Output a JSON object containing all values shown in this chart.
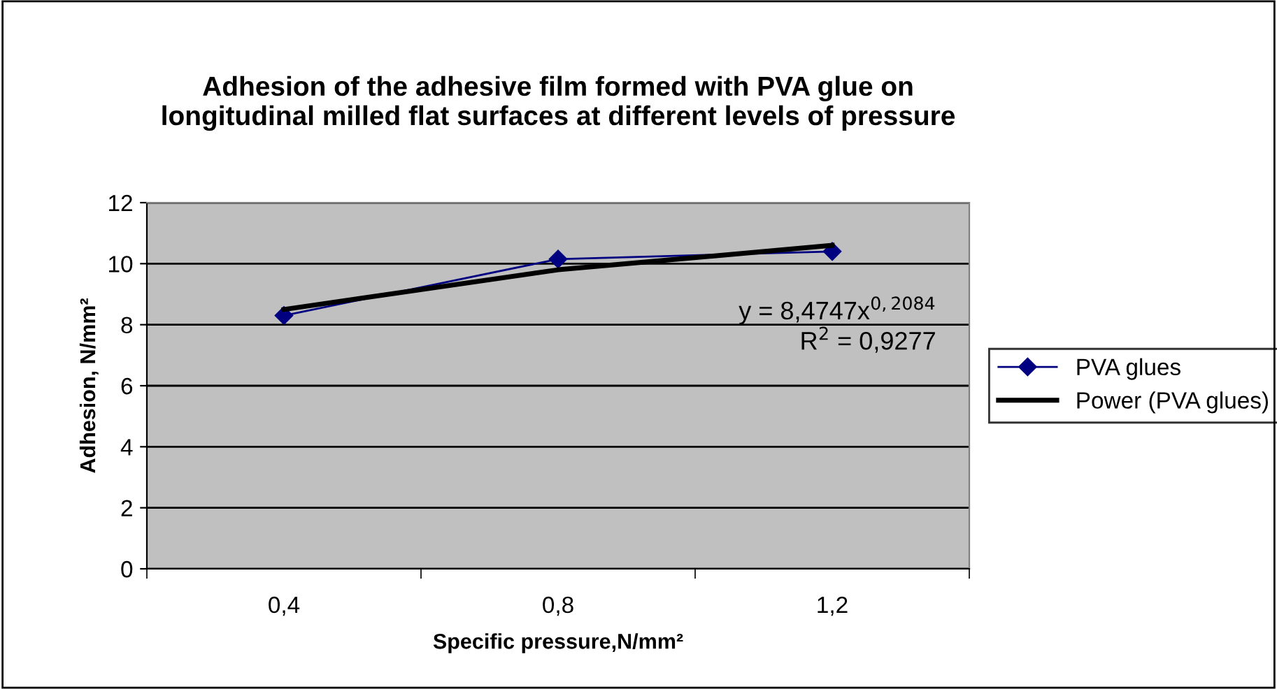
{
  "chart_data": {
    "type": "line",
    "title": "Adhesion of the adhesive film formed with PVA glue on\nlongitudinal milled flat surfaces at different levels of pressure",
    "xlabel": "Specific pressure,N/mm²",
    "ylabel": "Adhesion, N/mm²",
    "categories": [
      "0,4",
      "0,8",
      "1,2"
    ],
    "series": [
      {
        "name": "PVA glues",
        "color": "#000080",
        "values": [
          8.3,
          10.15,
          10.4
        ],
        "marker": "diamond"
      },
      {
        "name": "Power (PVA glues)",
        "color": "#000000",
        "values": [
          8.5,
          9.8,
          10.6
        ],
        "marker": "none"
      }
    ],
    "ylim": [
      0,
      12
    ],
    "yticks": [
      0,
      2,
      4,
      6,
      8,
      10,
      12
    ],
    "grid": "y",
    "legend": "right",
    "annotations": [
      "y = 8,4747x$^{0,2084}$",
      "R$^{2}$ = 0,9277"
    ]
  }
}
